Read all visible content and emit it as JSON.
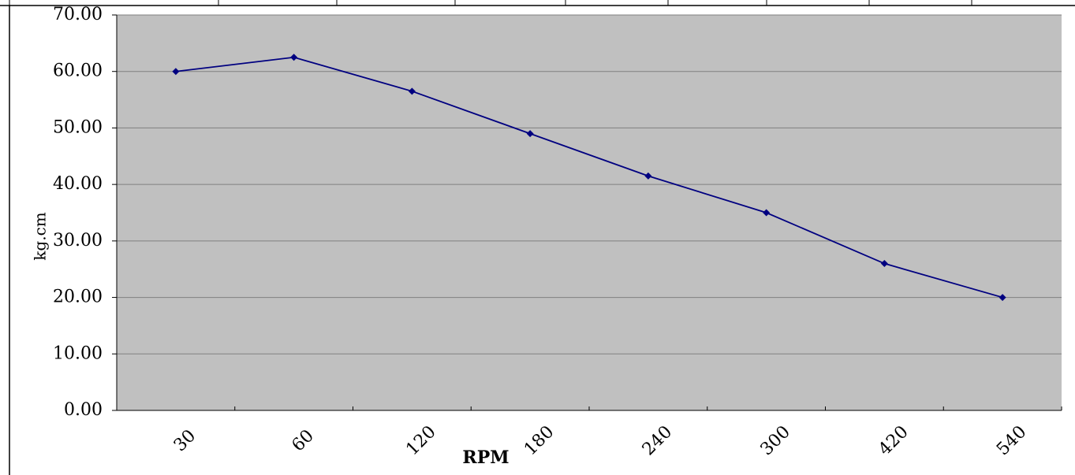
{
  "chart_data": {
    "type": "line",
    "categories": [
      "30",
      "60",
      "120",
      "180",
      "240",
      "300",
      "420",
      "540"
    ],
    "series": [
      {
        "values": [
          60.0,
          62.5,
          56.5,
          49.0,
          41.5,
          35.0,
          26.0,
          20.0
        ],
        "color": "#000080"
      }
    ],
    "ylabel": "kg.cm",
    "xlabel": "RPM",
    "ylim": [
      0,
      70
    ],
    "yticks": [
      "0.00",
      "10.00",
      "20.00",
      "30.00",
      "40.00",
      "50.00",
      "60.00",
      "70.00"
    ],
    "grid": true,
    "legend": "none",
    "plot_background": "#c0c0c0",
    "gridline_color": "#808080"
  }
}
